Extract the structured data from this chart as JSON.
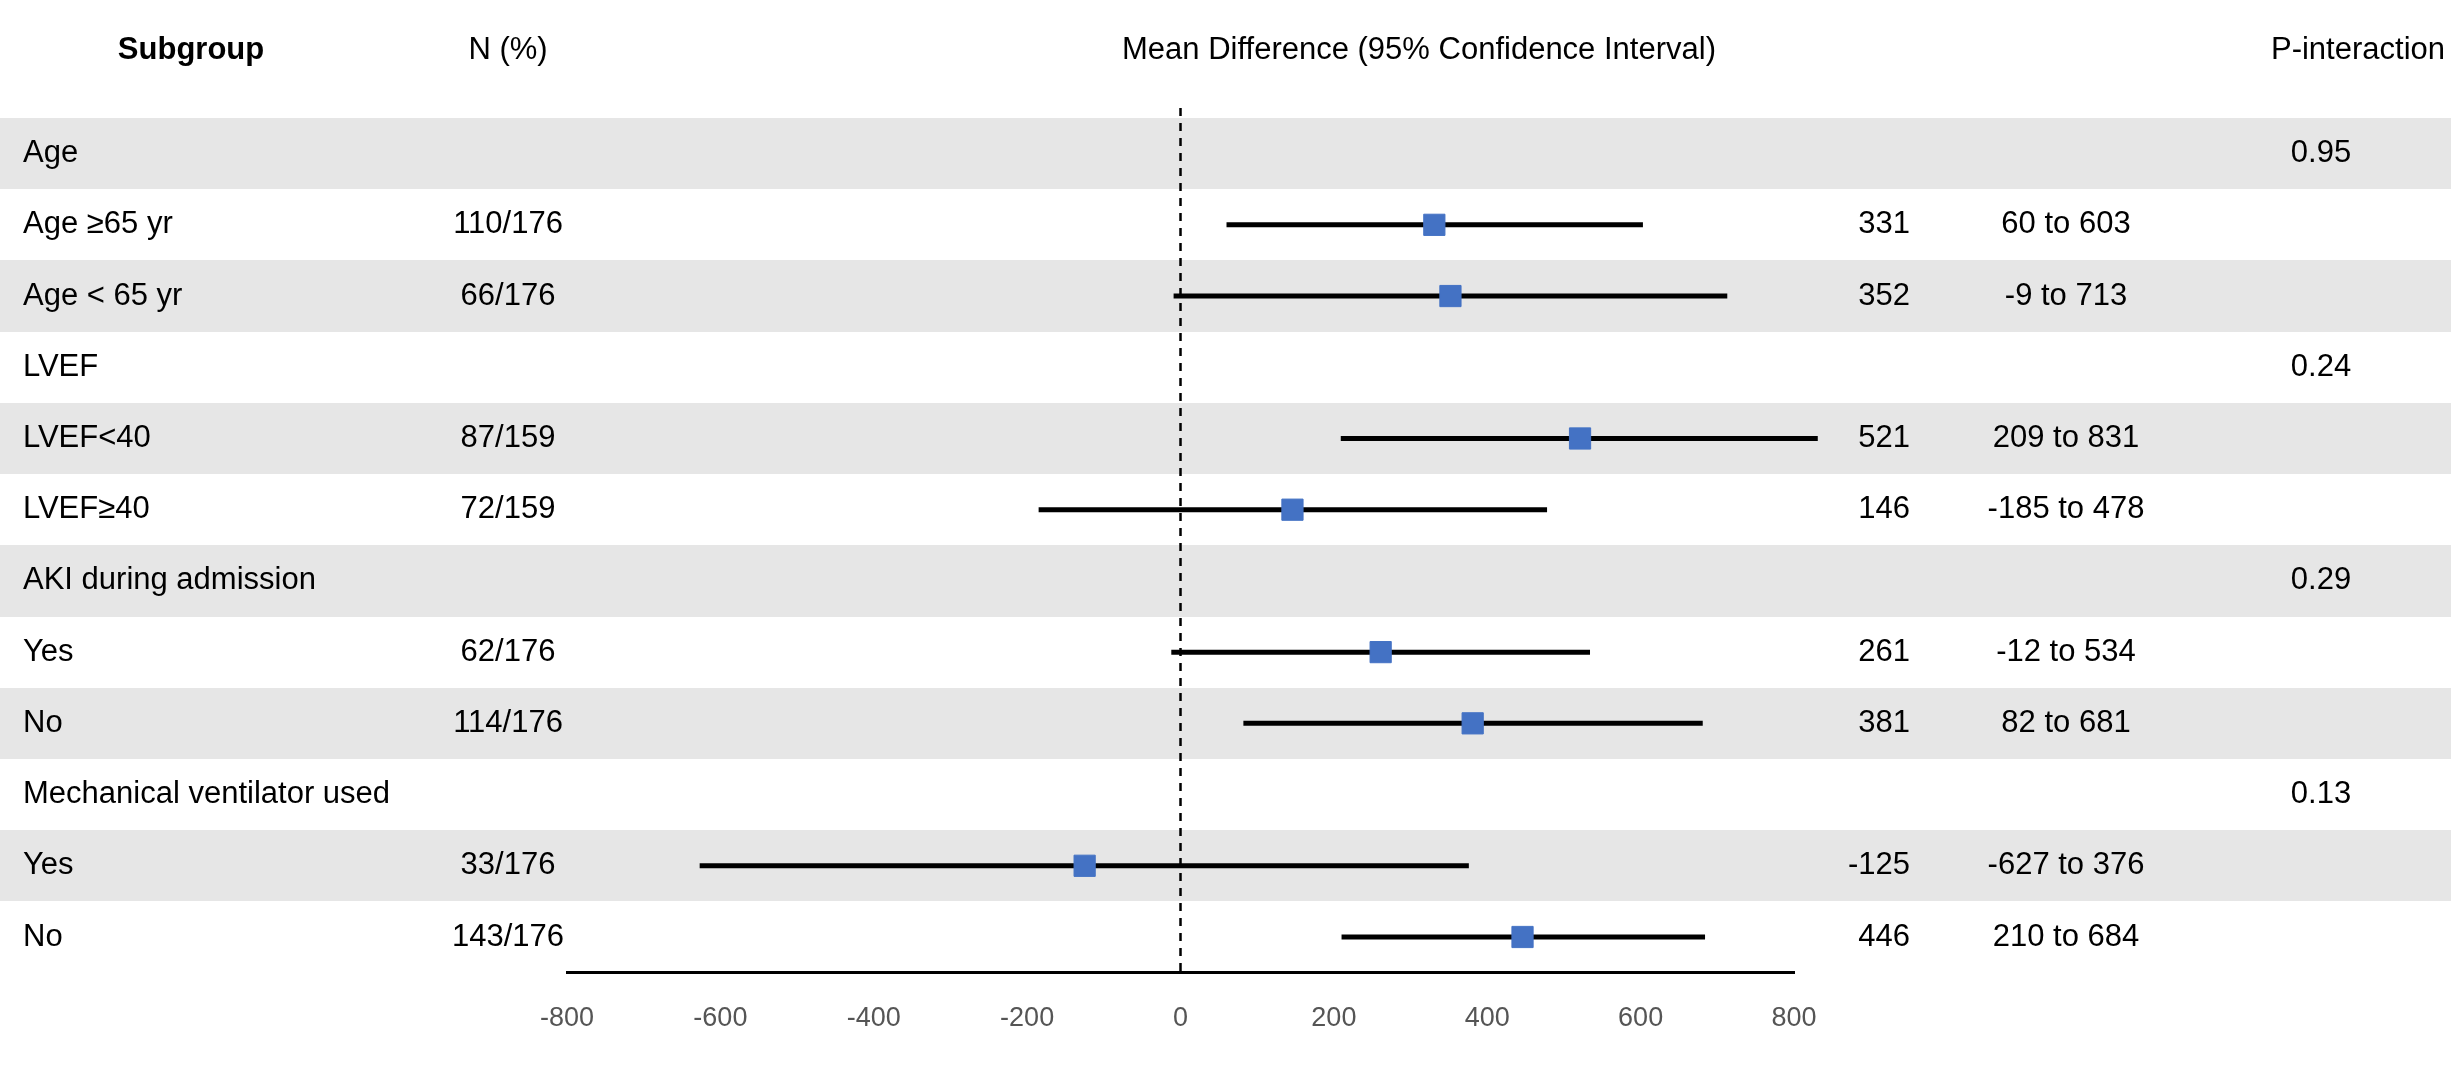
{
  "chart_data": {
    "type": "scatter",
    "orientation": "horizontal",
    "title": "Mean Difference (95% Confidence Interval)",
    "ylabel": "Subgroup",
    "categories": [
      "Age",
      "Age ≥65 yr",
      "Age < 65 yr",
      "LVEF",
      "LVEF<40",
      "LVEF≥40",
      "AKI during admission",
      "Yes",
      "No",
      "Mechanical ventilator used",
      "Yes",
      "No"
    ],
    "values": [
      null,
      331,
      352,
      null,
      521,
      146,
      null,
      261,
      381,
      null,
      -125,
      446
    ],
    "errors": [
      null,
      [
        60,
        603
      ],
      [
        -9,
        713
      ],
      null,
      [
        209,
        831
      ],
      [
        -185,
        478
      ],
      null,
      [
        -12,
        534
      ],
      [
        82,
        681
      ],
      null,
      [
        -627,
        376
      ],
      [
        210,
        684
      ]
    ],
    "value_labels": [
      null,
      "331",
      "352",
      null,
      "521",
      "146",
      null,
      "261",
      "381",
      null,
      "-125",
      "446"
    ],
    "color": "#4472c4",
    "marker": "square",
    "legend": false,
    "grid": false,
    "xlim": [
      -800,
      800
    ],
    "xticks": [
      -800,
      -600,
      -400,
      -200,
      0,
      200,
      400,
      600,
      800
    ],
    "ref_lines": [
      {
        "axis": "x",
        "value": 0,
        "line_style": "dashed",
        "color": "#000000"
      }
    ],
    "annotations": [
      "N (%)",
      "P-interaction",
      "0.95",
      "110/176",
      "60 to 603",
      "66/176",
      "-9 to 713",
      "0.24",
      "87/159",
      "209 to 831",
      "72/159",
      "-185 to 478",
      "0.29",
      "62/176",
      "-12 to 534",
      "114/176",
      "82 to 681",
      "0.13",
      "33/176",
      "-627 to 376",
      "143/176",
      "210 to 684"
    ]
  }
}
